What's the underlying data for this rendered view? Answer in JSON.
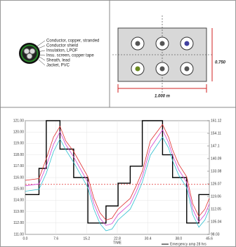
{
  "cable": {
    "labels": [
      "Conductor, copper, stranded",
      "Conductor shield",
      "Insulation, LPOF",
      "Insu. screen, copper tape",
      "Sheath, lead",
      "Jacket, PVC"
    ]
  },
  "ductbank": {
    "height_label": "0.750",
    "width_label": "1.000 m"
  },
  "chart_data": {
    "type": "line",
    "xlabel": "TIME",
    "xlim": [
      0,
      45.6
    ],
    "xticks": [
      {
        "value": 0,
        "label": "0.0"
      },
      7.6,
      15.2,
      22.8,
      30.4,
      {
        "value": 38,
        "label": "38.0"
      },
      45.6
    ],
    "ylim": [
      111,
      121
    ],
    "yticks": [
      {
        "value": 111,
        "label": "111.00"
      },
      {
        "value": 112,
        "label": "112.00"
      },
      {
        "value": 113,
        "label": "113.00"
      },
      {
        "value": 114,
        "label": "114.00"
      },
      {
        "value": 115,
        "label": "115.00"
      },
      {
        "value": 116,
        "label": "116.00"
      },
      {
        "value": 117,
        "label": "117.00"
      },
      {
        "value": 118,
        "label": "118.00"
      },
      {
        "value": 119,
        "label": "119.00"
      },
      {
        "value": 120,
        "label": "120.00"
      },
      {
        "value": 121,
        "label": "121.00"
      }
    ],
    "y2lim": [
      98.03,
      161.12
    ],
    "y2ticks": [
      98.03,
      105.04,
      112.05,
      119.06,
      126.07,
      133.08,
      {
        "value": 140.09,
        "label": "140.09"
      },
      147.1,
      154.11,
      161.12
    ],
    "reference_line": 115.4,
    "reference_color": "#e03030",
    "grid": true,
    "legend": "bottom-right",
    "series": [
      {
        "name": "Emergency amp 28 hrs",
        "color": "#000000",
        "x": [
          0,
          3.4,
          3.4,
          5.2,
          5.2,
          8.6,
          8.6,
          12,
          12,
          15.5,
          15.5,
          20,
          20,
          23,
          23,
          26,
          26,
          29,
          29,
          34,
          34,
          36.5,
          36.5,
          40,
          40,
          43,
          43,
          45.6
        ],
        "values": [
          114.5,
          114.5,
          116.8,
          116.8,
          121,
          121,
          118.5,
          118.5,
          116,
          116,
          112,
          112,
          113.5,
          113.5,
          115.5,
          115.5,
          117,
          117,
          121,
          121,
          118,
          118,
          116,
          116,
          112,
          112,
          114.5,
          114.5
        ]
      },
      {
        "name": null,
        "color": "#e03030",
        "axis": "y2",
        "x": [
          0,
          3.4,
          5.2,
          7,
          8.6,
          10,
          12,
          14,
          15.5,
          17,
          18.5,
          20,
          21.5,
          23,
          26,
          27.5,
          29,
          31,
          34,
          35.5,
          36.5,
          38,
          40,
          41.5,
          43,
          44.5,
          45.6
        ],
        "values": [
          128,
          129,
          140,
          152,
          158,
          150,
          144,
          136,
          130,
          118,
          110,
          106,
          107,
          112,
          118,
          125,
          133,
          150,
          159,
          152,
          145,
          137,
          130,
          115,
          108,
          112,
          118
        ]
      },
      {
        "name": null,
        "color": "#d040d0",
        "axis": "y2",
        "x": [
          0,
          3.4,
          5.2,
          7,
          8.6,
          10,
          12,
          14,
          15.5,
          17,
          18.5,
          20,
          21.5,
          23,
          26,
          27.5,
          29,
          31,
          34,
          35.5,
          36.5,
          38,
          40,
          41.5,
          43,
          44.5,
          45.6
        ],
        "values": [
          125,
          126,
          136,
          148,
          155,
          148,
          141,
          133,
          127,
          115,
          107,
          103,
          104,
          109,
          115,
          122,
          130,
          146,
          156,
          149,
          142,
          134,
          127,
          112,
          105,
          109,
          115
        ]
      },
      {
        "name": null,
        "color": "#30c0d0",
        "axis": "y2",
        "x": [
          0,
          3.4,
          5.2,
          7,
          8.6,
          10,
          12,
          14,
          15.5,
          17,
          18.5,
          20,
          21.5,
          23,
          26,
          27.5,
          29,
          31,
          34,
          35.5,
          36.5,
          38,
          40,
          41.5,
          43,
          44.5,
          45.6
        ],
        "values": [
          122,
          123,
          132,
          144,
          151,
          145,
          138,
          130,
          124,
          112,
          104,
          100,
          101,
          106,
          112,
          119,
          127,
          142,
          152,
          146,
          139,
          131,
          124,
          109,
          102,
          106,
          112
        ]
      }
    ]
  }
}
